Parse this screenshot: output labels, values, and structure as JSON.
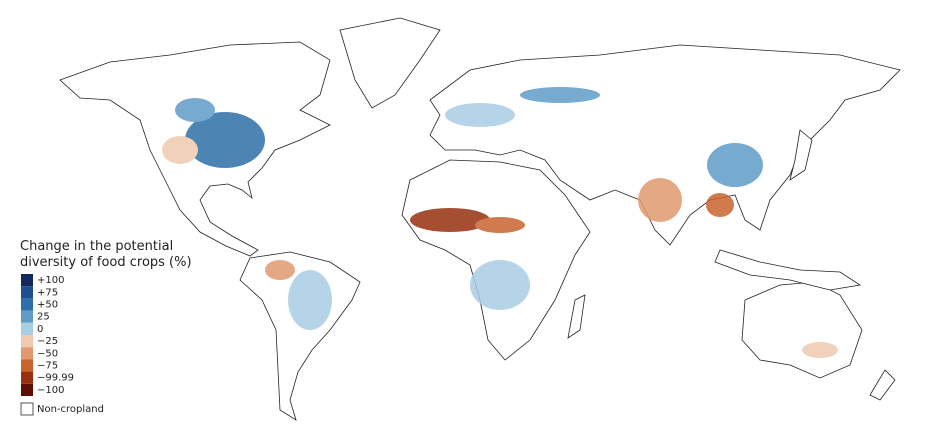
{
  "legend": {
    "title_lines": [
      "Change in the potential",
      "diversity of food crops (%)"
    ],
    "items": [
      {
        "label": "+100",
        "color": "#14285e"
      },
      {
        "label": "+75",
        "color": "#1d4f8c"
      },
      {
        "label": "+50",
        "color": "#2d6fa8"
      },
      {
        "label": "25",
        "color": "#5f9cc7"
      },
      {
        "label": "0",
        "color": "#a9cde3"
      },
      {
        "label": "−25",
        "color": "#f0c9b0"
      },
      {
        "label": "−50",
        "color": "#e19a70"
      },
      {
        "label": "−75",
        "color": "#c8632e"
      },
      {
        "label": "−99.99",
        "color": "#97300f"
      },
      {
        "label": "−100",
        "color": "#5c0e06"
      }
    ],
    "non_cropland": "Non-cropland"
  }
}
